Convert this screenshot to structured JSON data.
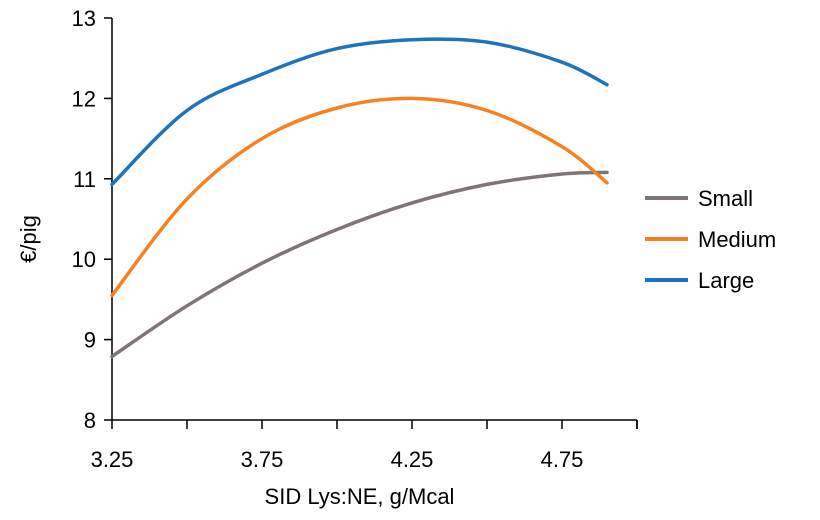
{
  "chart_data": {
    "type": "line",
    "title": "",
    "xlabel": "SID Lys:NE, g/Mcal",
    "ylabel": "€/pig",
    "xlim": [
      3.25,
      5.0
    ],
    "ylim": [
      8,
      13
    ],
    "x_ticks": [
      3.25,
      3.75,
      4.25,
      4.75
    ],
    "x_tick_labels": [
      "3.25",
      "3.75",
      "4.25",
      "4.75"
    ],
    "y_ticks": [
      8,
      9,
      10,
      11,
      12,
      13
    ],
    "y_tick_labels": [
      "8",
      "9",
      "10",
      "11",
      "12",
      "13"
    ],
    "grid": false,
    "legend_position": "right",
    "series": [
      {
        "name": "Small",
        "color": "#7f7477",
        "x": [
          3.25,
          3.5,
          3.75,
          4.0,
          4.25,
          4.5,
          4.75,
          4.9
        ],
        "y": [
          8.79,
          9.42,
          9.95,
          10.37,
          10.7,
          10.93,
          11.06,
          11.08
        ]
      },
      {
        "name": "Medium",
        "color": "#f58220",
        "x": [
          3.25,
          3.5,
          3.75,
          4.0,
          4.25,
          4.5,
          4.75,
          4.9
        ],
        "y": [
          9.55,
          10.75,
          11.5,
          11.88,
          12.0,
          11.85,
          11.4,
          10.95
        ]
      },
      {
        "name": "Large",
        "color": "#1c75bc",
        "x": [
          3.25,
          3.5,
          3.75,
          4.0,
          4.25,
          4.5,
          4.75,
          4.9
        ],
        "y": [
          10.93,
          11.85,
          12.3,
          12.62,
          12.73,
          12.7,
          12.45,
          12.17
        ]
      }
    ]
  }
}
